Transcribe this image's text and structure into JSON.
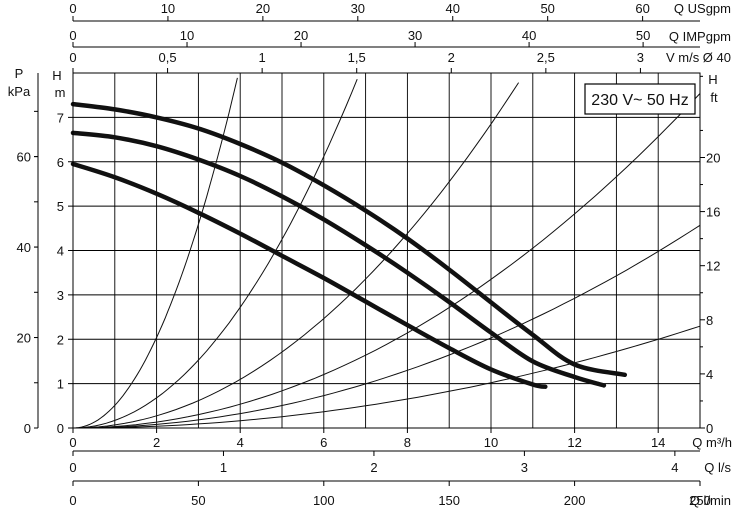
{
  "chart_data": {
    "type": "line",
    "annotation": "230 V~ 50 Hz",
    "grid": true,
    "x": {
      "label": "Q m³/h",
      "range": [
        0,
        15
      ],
      "ticks": [
        0,
        2,
        4,
        6,
        8,
        10,
        12,
        14
      ],
      "tick_labels": [
        "0",
        "2",
        "4",
        "6",
        "8",
        "10",
        "12",
        "14"
      ]
    },
    "y": {
      "label_top": "H",
      "label_unit": "m",
      "range": [
        0,
        8
      ],
      "ticks": [
        0,
        1,
        2,
        3,
        4,
        5,
        6,
        7
      ],
      "tick_labels": [
        "0",
        "1",
        "2",
        "3",
        "4",
        "5",
        "6",
        "7"
      ]
    },
    "secondary_axes": {
      "top": [
        {
          "label": "Q USgpm",
          "per_m3h": 4.403,
          "ticks": [
            0,
            10,
            20,
            30,
            40,
            50,
            60
          ],
          "tick_labels": [
            "0",
            "10",
            "20",
            "30",
            "40",
            "50",
            "60"
          ]
        },
        {
          "label": "Q IMPgpm",
          "per_m3h": 3.666,
          "ticks": [
            0,
            10,
            20,
            30,
            40,
            50
          ],
          "tick_labels": [
            "0",
            "10",
            "20",
            "30",
            "40",
            "50"
          ]
        },
        {
          "label": "V m/s Ø 40",
          "per_m3h": 0.221,
          "ticks": [
            0,
            0.5,
            1,
            1.5,
            2,
            2.5,
            3
          ],
          "tick_labels": [
            "0",
            "0,5",
            "1",
            "1,5",
            "2",
            "2,5",
            "3"
          ]
        }
      ],
      "bottom": [
        {
          "label": "Q l/s",
          "per_m3h": 0.2778,
          "ticks": [
            0,
            1,
            2,
            3,
            4
          ],
          "tick_labels": [
            "0",
            "1",
            "2",
            "3",
            "4"
          ]
        },
        {
          "label": "Q l/min",
          "per_m3h": 16.667,
          "ticks": [
            0,
            50,
            100,
            150,
            200,
            250
          ],
          "tick_labels": [
            "0",
            "50",
            "100",
            "150",
            "200",
            "250"
          ]
        }
      ],
      "left": {
        "label_top": "P",
        "label_unit": "kPa",
        "per_m": 9.81,
        "ticks": [
          0,
          20,
          40,
          60
        ],
        "tick_labels": [
          "0",
          "20",
          "40",
          "60"
        ]
      },
      "right": {
        "label_top": "H",
        "label_unit": "ft",
        "per_m": 3.2808,
        "ticks": [
          0,
          4,
          8,
          12,
          16,
          20
        ],
        "tick_labels": [
          "0",
          "4",
          "8",
          "12",
          "16",
          "20"
        ]
      }
    },
    "series": [
      {
        "kind": "pump",
        "points": [
          [
            0,
            7.3
          ],
          [
            1,
            7.18
          ],
          [
            2,
            7.0
          ],
          [
            3,
            6.75
          ],
          [
            4,
            6.4
          ],
          [
            5,
            5.98
          ],
          [
            6,
            5.47
          ],
          [
            7,
            4.9
          ],
          [
            8,
            4.27
          ],
          [
            9,
            3.57
          ],
          [
            10,
            2.83
          ],
          [
            11,
            2.1
          ],
          [
            12,
            1.43
          ],
          [
            13.2,
            1.2
          ]
        ]
      },
      {
        "kind": "pump",
        "points": [
          [
            0,
            6.65
          ],
          [
            1,
            6.55
          ],
          [
            2,
            6.35
          ],
          [
            3,
            6.05
          ],
          [
            4,
            5.68
          ],
          [
            5,
            5.22
          ],
          [
            6,
            4.7
          ],
          [
            7,
            4.12
          ],
          [
            8,
            3.5
          ],
          [
            9,
            2.84
          ],
          [
            10,
            2.15
          ],
          [
            11,
            1.5
          ],
          [
            12,
            1.15
          ],
          [
            12.7,
            0.96
          ]
        ]
      },
      {
        "kind": "pump",
        "points": [
          [
            0,
            5.95
          ],
          [
            1,
            5.65
          ],
          [
            2,
            5.28
          ],
          [
            3,
            4.85
          ],
          [
            4,
            4.38
          ],
          [
            5,
            3.88
          ],
          [
            6,
            3.38
          ],
          [
            7,
            2.85
          ],
          [
            8,
            2.32
          ],
          [
            9,
            1.8
          ],
          [
            10,
            1.32
          ],
          [
            11,
            0.98
          ],
          [
            11.3,
            0.93
          ]
        ]
      },
      {
        "kind": "system",
        "k": 0.51,
        "x_max": 4.0
      },
      {
        "kind": "system",
        "k": 0.17,
        "x_max": 8.0
      },
      {
        "kind": "system",
        "k": 0.0685,
        "x_max": 12.3
      },
      {
        "kind": "system",
        "k": 0.0335,
        "x_max": 15.0
      },
      {
        "kind": "system",
        "k": 0.0203,
        "x_max": 15.0
      },
      {
        "kind": "system",
        "k": 0.0102,
        "x_max": 15.0
      }
    ]
  }
}
